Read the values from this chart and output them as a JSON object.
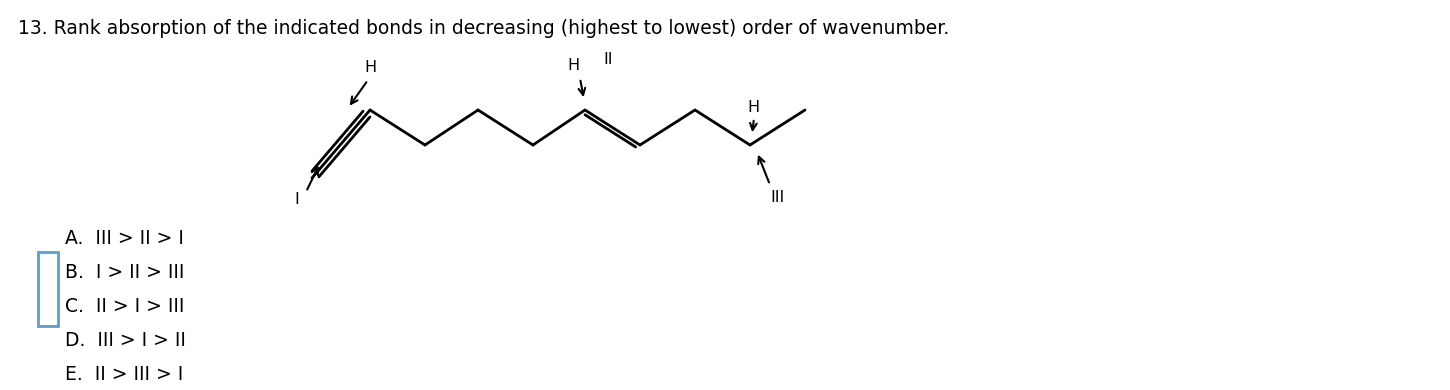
{
  "title": "13. Rank absorption of the indicated bonds in decreasing (highest to lowest) order of wavenumber.",
  "title_fontsize": 13.5,
  "options": [
    "A.  III > II > I",
    "B.  I > II > III",
    "C.  II > I > III",
    "D.  III > I > II",
    "E.  II > III > I"
  ],
  "options_fontsize": 13.5,
  "checkbox_color": "#6699cc",
  "background_color": "#ffffff",
  "text_color": "#000000",
  "mol_lw": 2.0,
  "mol_fontsize": 11.5
}
